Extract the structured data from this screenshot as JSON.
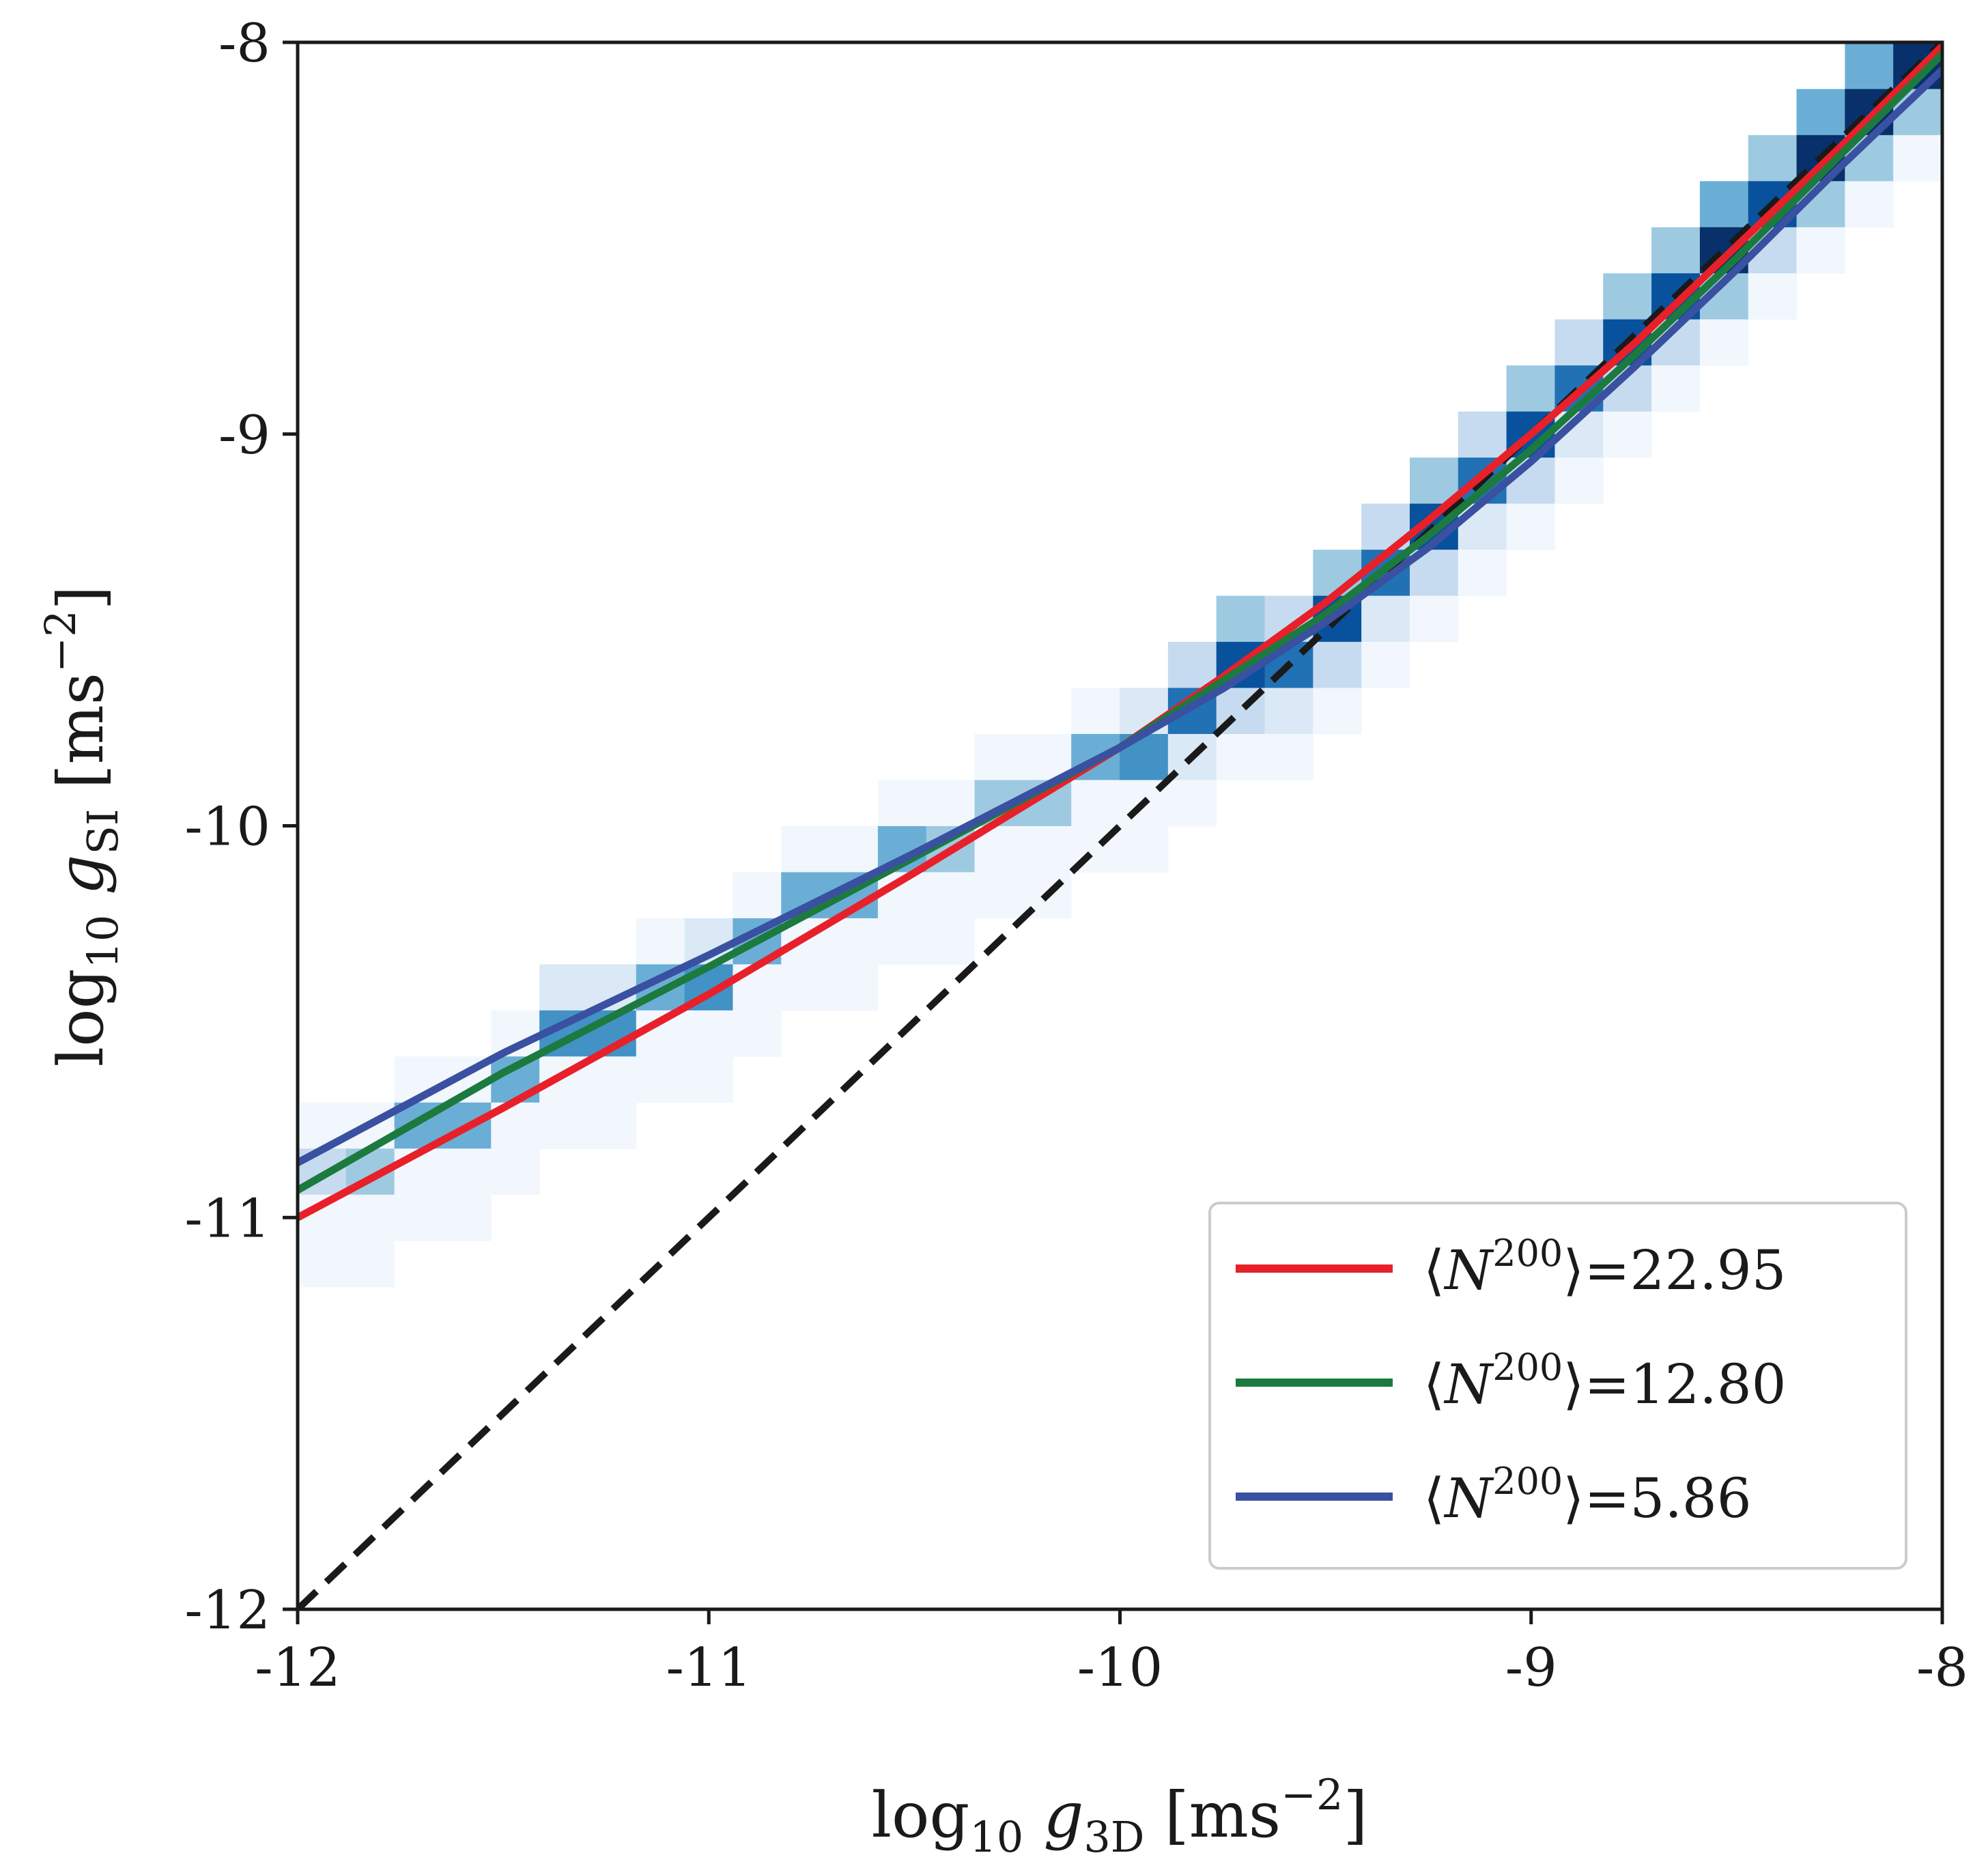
{
  "chart_data": {
    "type": "heatmap",
    "title": "",
    "xlabel": "log10 g3D [ms−2]",
    "ylabel": "log10 gSI [ms−2]",
    "xlabel_parts": {
      "main": "log",
      "sub": "10",
      "var": " g",
      "var_sub": "3D",
      "unit": " [ms",
      "unit_sup": "−2",
      "unit_end": "]"
    },
    "ylabel_parts": {
      "main": "log",
      "sub": "10",
      "var": " g",
      "var_sub": "SI",
      "unit": " [ms",
      "unit_sup": "−2",
      "unit_end": "]"
    },
    "xlim": [
      -12,
      -8
    ],
    "ylim": [
      -12,
      -8
    ],
    "xticks": [
      {
        "value": -12,
        "label": "-12"
      },
      {
        "value": -11,
        "label": "-11"
      },
      {
        "value": -10,
        "label": "-10"
      },
      {
        "value": -9,
        "label": "-9"
      },
      {
        "value": -8,
        "label": "-8"
      }
    ],
    "yticks": [
      {
        "value": -12,
        "label": "-12"
      },
      {
        "value": -11,
        "label": "-11"
      },
      {
        "value": -10,
        "label": "-10"
      },
      {
        "value": -9,
        "label": "-9"
      },
      {
        "value": -8,
        "label": "-8"
      }
    ],
    "heatmap": {
      "bin_width": 0.1176,
      "x_start": -12,
      "colors": [
        "#ffffff",
        "#f1f7fd",
        "#dbe9f6",
        "#c6dbef",
        "#9ecae1",
        "#6aaed6",
        "#4292c6",
        "#2171b5",
        "#08519c",
        "#08306b"
      ],
      "ridge_x": [
        -12.0,
        -11.0,
        -10.0,
        -9.7,
        -9.0,
        -8.0
      ],
      "ridge_y": [
        -10.95,
        -10.36,
        -9.8,
        -9.63,
        -9.02,
        -8.02
      ],
      "intensity_low": [
        3,
        4,
        5,
        5,
        5,
        6,
        6,
        5,
        6,
        5,
        5,
        5,
        5,
        4,
        4,
        4,
        5,
        6,
        7,
        8,
        7,
        8,
        7,
        8,
        7,
        8,
        7,
        8,
        8,
        9,
        8,
        9,
        9,
        9
      ]
    },
    "identity_line": {
      "style": "dashed",
      "color": "#1a1a1a",
      "x": [
        -12,
        -8
      ],
      "y": [
        -12,
        -8
      ]
    },
    "series": [
      {
        "name": "⟨N200⟩=22.95",
        "color": "#e8202a",
        "x": [
          -12.0,
          -11.5,
          -11.0,
          -10.5,
          -10.0,
          -9.75,
          -9.5,
          -9.25,
          -9.0,
          -8.75,
          -8.5,
          -8.25,
          -8.0
        ],
        "y": [
          -11.0,
          -10.72,
          -10.43,
          -10.12,
          -9.8,
          -9.62,
          -9.43,
          -9.22,
          -9.0,
          -8.77,
          -8.52,
          -8.27,
          -8.01
        ]
      },
      {
        "name": "⟨N200⟩=12.80",
        "color": "#1c7a3e",
        "x": [
          -12.0,
          -11.5,
          -11.0,
          -10.5,
          -10.0,
          -9.75,
          -9.5,
          -9.25,
          -9.0,
          -8.75,
          -8.5,
          -8.25,
          -8.0
        ],
        "y": [
          -10.93,
          -10.63,
          -10.36,
          -10.08,
          -9.8,
          -9.63,
          -9.46,
          -9.26,
          -9.04,
          -8.8,
          -8.55,
          -8.29,
          -8.03
        ]
      },
      {
        "name": "⟨N200⟩=5.86",
        "color": "#3a50a0",
        "x": [
          -12.0,
          -11.5,
          -11.0,
          -10.5,
          -10.0,
          -9.75,
          -9.5,
          -9.25,
          -9.0,
          -8.75,
          -8.5,
          -8.25,
          -8.0
        ],
        "y": [
          -10.86,
          -10.58,
          -10.33,
          -10.07,
          -9.8,
          -9.65,
          -9.48,
          -9.29,
          -9.07,
          -8.83,
          -8.58,
          -8.32,
          -8.07
        ]
      }
    ],
    "legend": {
      "placement": "lower-right",
      "entries": [
        {
          "bracket_open": "⟨",
          "symbol": "N",
          "sup": "200",
          "bracket_close": "⟩",
          "value": "=22.95",
          "color": "#e8202a"
        },
        {
          "bracket_open": "⟨",
          "symbol": "N",
          "sup": "200",
          "bracket_close": "⟩",
          "value": "=12.80",
          "color": "#1c7a3e"
        },
        {
          "bracket_open": "⟨",
          "symbol": "N",
          "sup": "200",
          "bracket_close": "⟩",
          "value": "=5.86",
          "color": "#3a50a0"
        }
      ]
    },
    "grid": false
  }
}
